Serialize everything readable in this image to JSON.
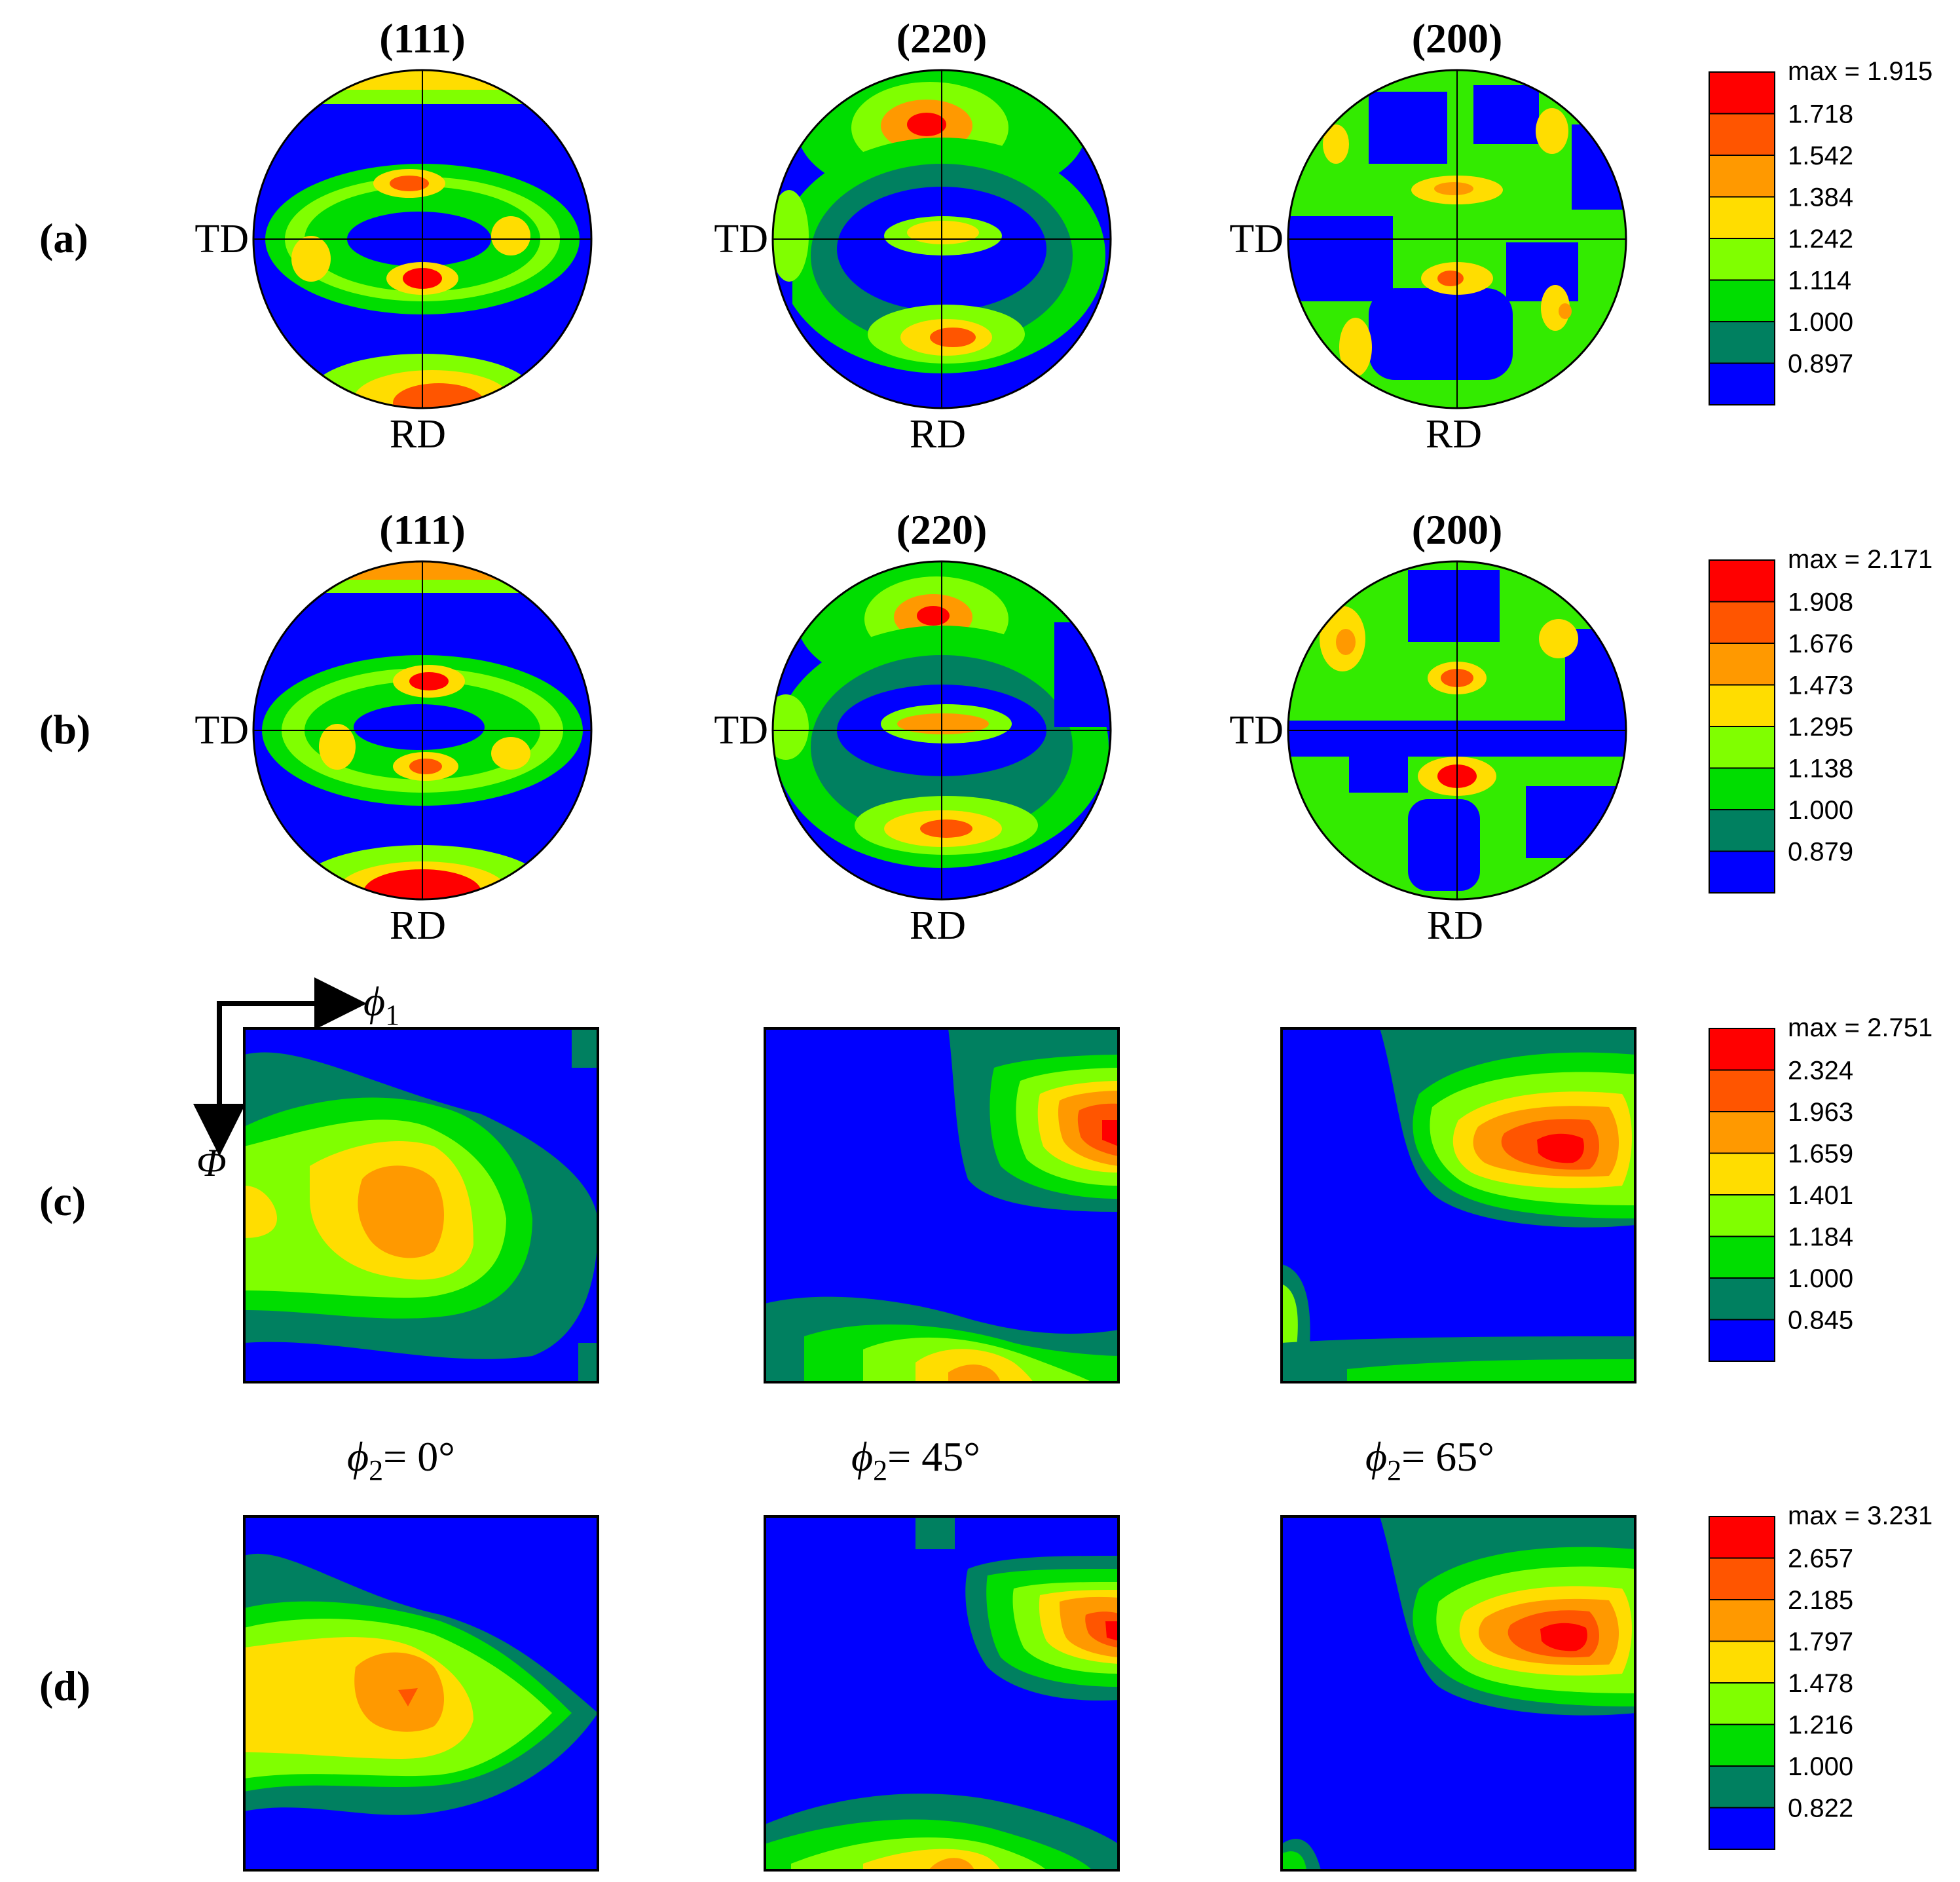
{
  "figure": {
    "rows": [
      {
        "label": "(a)",
        "kind": "pole-figure",
        "panels": [
          {
            "title": "(111)",
            "left_label": "TD",
            "bottom_label": "RD"
          },
          {
            "title": "(220)",
            "left_label": "TD",
            "bottom_label": "RD"
          },
          {
            "title": "(200)",
            "left_label": "TD",
            "bottom_label": "RD"
          }
        ],
        "legend": {
          "max_label": "max = 1.915",
          "levels": [
            "1.718",
            "1.542",
            "1.384",
            "1.242",
            "1.114",
            "1.000",
            "0.897"
          ]
        }
      },
      {
        "label": "(b)",
        "kind": "pole-figure",
        "panels": [
          {
            "title": "(111)",
            "left_label": "TD",
            "bottom_label": "RD"
          },
          {
            "title": "(220)",
            "left_label": "TD",
            "bottom_label": "RD"
          },
          {
            "title": "(200)",
            "left_label": "TD",
            "bottom_label": "RD"
          }
        ],
        "legend": {
          "max_label": "max = 2.171",
          "levels": [
            "1.908",
            "1.676",
            "1.473",
            "1.295",
            "1.138",
            "1.000",
            "0.879"
          ]
        }
      },
      {
        "label": "(c)",
        "kind": "odf-section",
        "axis_phi1": "ϕ",
        "axis_phi1_sub": "1",
        "axis_Phi": "Φ",
        "legend": {
          "max_label": "max = 2.751",
          "levels": [
            "2.324",
            "1.963",
            "1.659",
            "1.401",
            "1.184",
            "1.000",
            "0.845"
          ]
        }
      },
      {
        "label": "(d)",
        "kind": "odf-section",
        "legend": {
          "max_label": "max = 3.231",
          "levels": [
            "2.657",
            "2.185",
            "1.797",
            "1.478",
            "1.216",
            "1.000",
            "0.822"
          ]
        }
      }
    ],
    "phi2_labels": [
      {
        "symbol": "ϕ",
        "sub": "2",
        "text": "= 0°"
      },
      {
        "symbol": "ϕ",
        "sub": "2",
        "text": "= 45°"
      },
      {
        "symbol": "ϕ",
        "sub": "2",
        "text": "= 65°"
      }
    ],
    "colors": {
      "c0": "#0000ff",
      "c1": "#008060",
      "c2": "#00dd00",
      "c3": "#80ff00",
      "c4": "#ffdd00",
      "c5": "#ff9900",
      "c6": "#ff5500",
      "c7": "#ff0000"
    }
  }
}
